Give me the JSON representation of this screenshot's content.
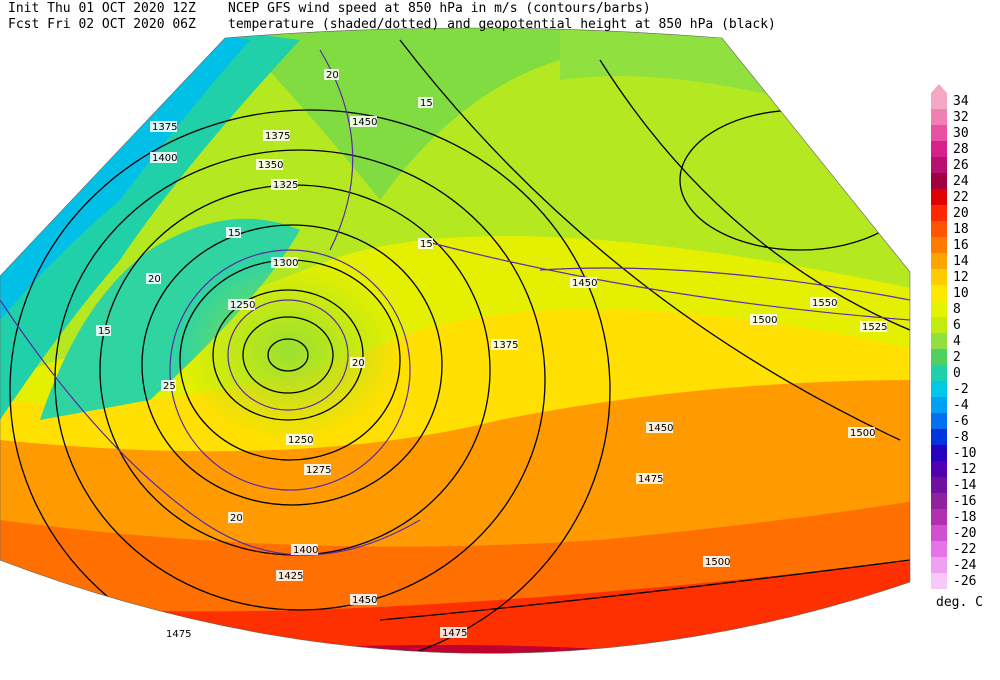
{
  "header": {
    "init": "Init  Thu 01 OCT 2020 12Z",
    "fcst": "Fcst Fri 02 OCT 2020 06Z",
    "title_line1": "NCEP GFS wind speed at 850 hPa in m/s (contours/barbs)",
    "title_line2": "temperature (shaded/dotted) and geopotential height at 850 hPa (black)"
  },
  "colorbar": {
    "values": [
      34,
      32,
      30,
      28,
      26,
      24,
      22,
      20,
      18,
      16,
      14,
      12,
      10,
      8,
      6,
      4,
      2,
      0,
      -2,
      -4,
      -6,
      -8,
      -10,
      -12,
      -14,
      -16,
      -18,
      -20,
      -22,
      -24,
      -26
    ],
    "colors": [
      "#f4a8c4",
      "#f080b4",
      "#e850a4",
      "#d8208c",
      "#b81070",
      "#a00040",
      "#e00000",
      "#ff2800",
      "#ff5400",
      "#ff7c00",
      "#ffa400",
      "#ffcc00",
      "#ffe800",
      "#e4f400",
      "#c0ec10",
      "#90e040",
      "#50d060",
      "#20d0a8",
      "#00c8e8",
      "#00a0f4",
      "#0070f0",
      "#0034e0",
      "#2800c0",
      "#5000b0",
      "#7010a0",
      "#9020a0",
      "#b030b0",
      "#d050d0",
      "#e474e8",
      "#f0a0f0",
      "#f8c8f8"
    ],
    "unit": "deg. C"
  },
  "map_labels": [
    "1375",
    "1400",
    "1375",
    "1350",
    "1325",
    "1300",
    "1250",
    "1250",
    "1275",
    "1400",
    "1425",
    "1450",
    "1475",
    "1475",
    "1375",
    "1450",
    "1475",
    "1500",
    "1500",
    "1450",
    "1500",
    "1525",
    "1550",
    "1450",
    "20",
    "15",
    "15",
    "20",
    "20",
    "25",
    "15",
    "20",
    "15"
  ]
}
